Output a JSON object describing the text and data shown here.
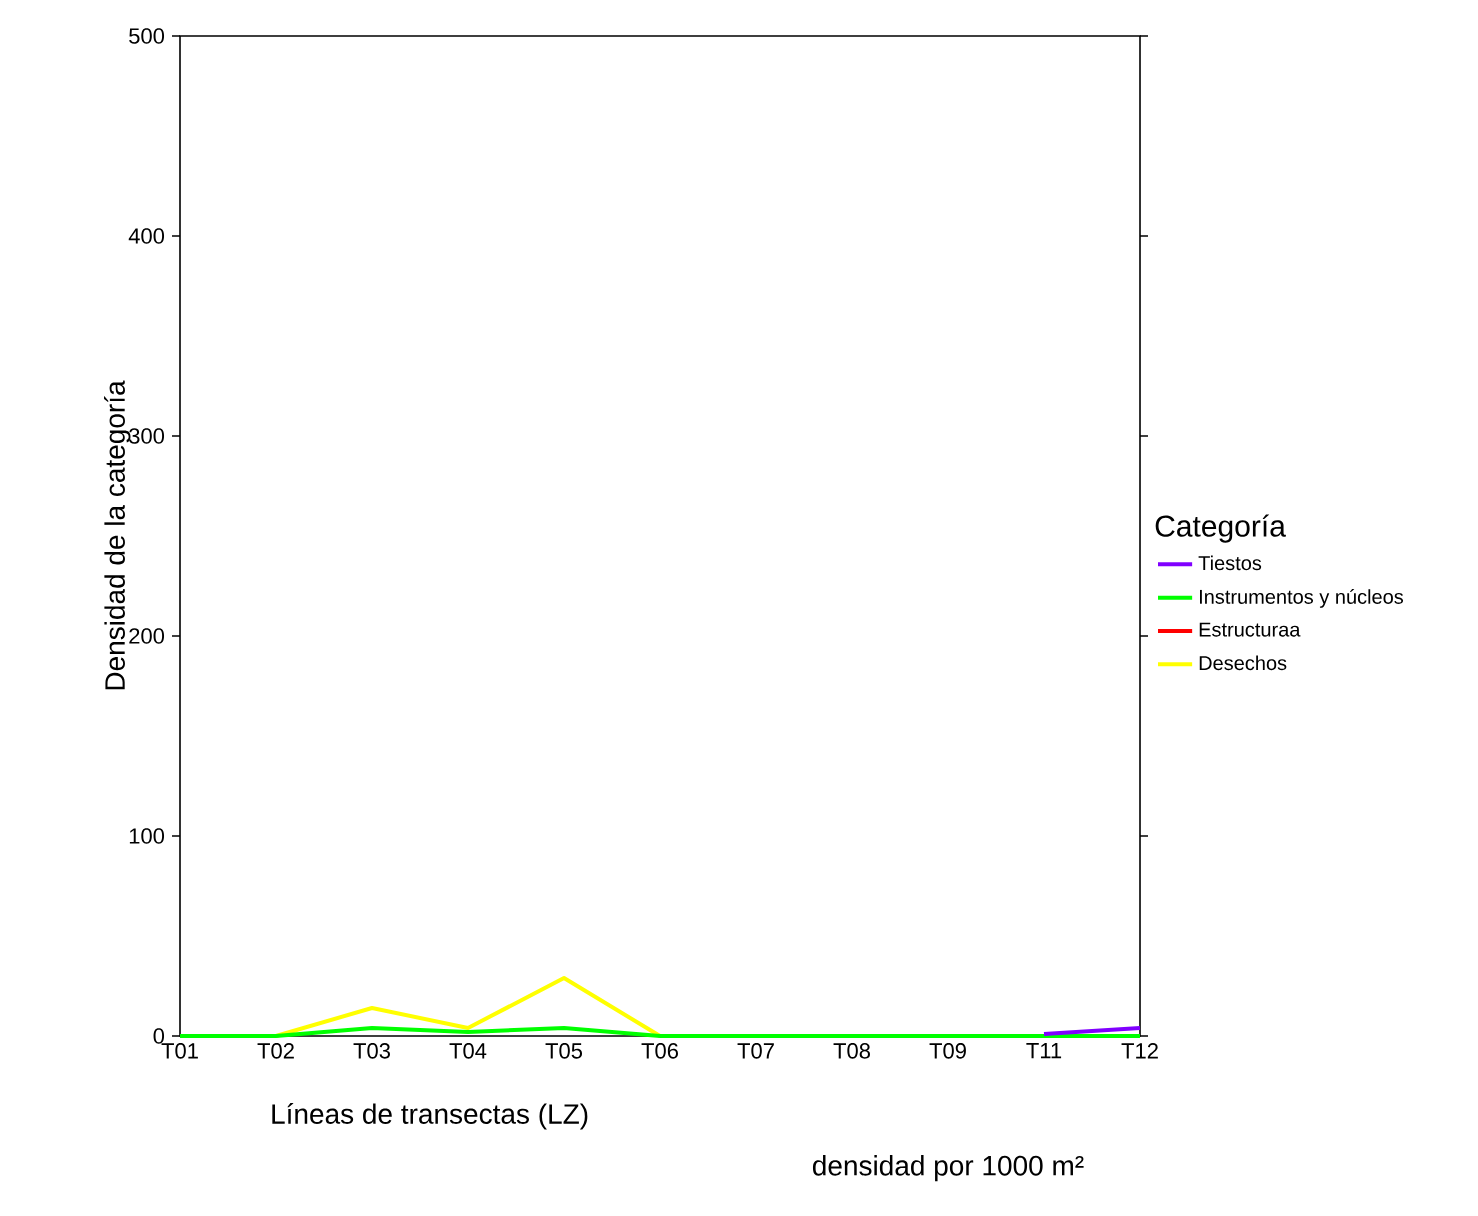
{
  "chart_data": {
    "type": "line",
    "xlabel": "Líneas de transectas (LZ)",
    "ylabel": "Densidad de la categoría",
    "legend_title": "Categoría",
    "annotations": [
      "densidad por 1000 m²"
    ],
    "categories": [
      "T01",
      "T02",
      "T03",
      "T04",
      "T05",
      "T06",
      "T07",
      "T08",
      "T09",
      "T11",
      "T12"
    ],
    "ylim": [
      0,
      500
    ],
    "yticks": [
      0,
      100,
      200,
      300,
      400,
      500
    ],
    "legend": "right",
    "grid": false,
    "series": [
      {
        "name": "Desechos",
        "color": "#ffff00",
        "values": [
          null,
          0,
          14,
          4,
          29,
          0,
          null,
          null,
          null,
          null,
          null
        ]
      },
      {
        "name": "Estructuraa",
        "color": "#ff0000",
        "values": [
          null,
          null,
          null,
          null,
          null,
          null,
          null,
          null,
          null,
          null,
          null
        ]
      },
      {
        "name": "Instrumentos y núcleos",
        "color": "#00ff00",
        "values": [
          0,
          0,
          4,
          2,
          4,
          0,
          0,
          0,
          0,
          0,
          0
        ]
      },
      {
        "name": "Tiestos",
        "color": "#8000ff",
        "values": [
          null,
          null,
          null,
          null,
          null,
          null,
          null,
          null,
          null,
          1,
          4
        ]
      }
    ]
  }
}
